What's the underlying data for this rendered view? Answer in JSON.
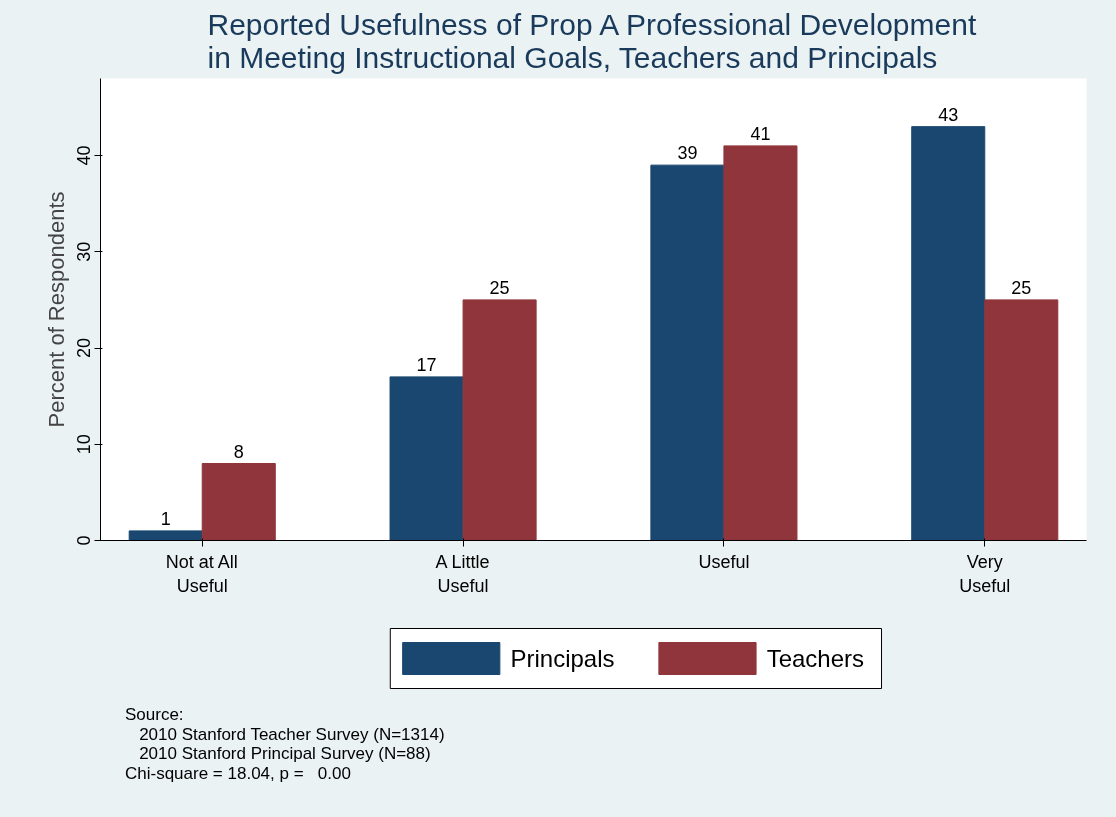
{
  "chart_data": {
    "type": "bar",
    "title": "Reported Usefulness of Prop A Professional Development\nin Meeting Instructional Goals, Teachers and Principals",
    "ylabel": "Percent of Respondents",
    "categories": [
      "Not at All\nUseful",
      "A Little\nUseful",
      "Useful",
      "Very\nUseful"
    ],
    "series": [
      {
        "name": "Principals",
        "color": "#1a476f",
        "values": [
          1,
          17,
          39,
          43
        ]
      },
      {
        "name": "Teachers",
        "color": "#90353b",
        "values": [
          8,
          25,
          41,
          25
        ]
      }
    ],
    "ylim": [
      0,
      48
    ],
    "yticks": [
      0,
      10,
      20,
      30,
      40
    ],
    "grid": false,
    "legend": "bottom",
    "data_labels": true,
    "annotations": [
      "Source:",
      "  2010 Stanford Teacher Survey (N=1314)",
      "  2010 Stanford Principal Survey (N=88)",
      "Chi-square = 18.04, p =  0.00"
    ]
  }
}
